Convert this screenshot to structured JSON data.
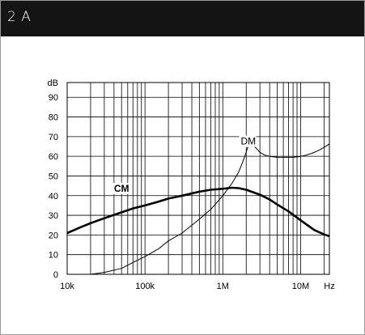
{
  "header": {
    "title": "2 A"
  },
  "chart_data": {
    "type": "line",
    "title": "2 A",
    "x_scale": "log",
    "xlim": [
      10000,
      1000000000
    ],
    "ylim": [
      0,
      100
    ],
    "y_unit_label": "dB",
    "x_unit_label": "Hz",
    "y_ticks": [
      0,
      10,
      20,
      30,
      40,
      50,
      60,
      70,
      80,
      90
    ],
    "x_ticks": [
      {
        "value": 10000,
        "label": "10k"
      },
      {
        "value": 100000,
        "label": "100k"
      },
      {
        "value": 1000000,
        "label": "1M"
      },
      {
        "value": 10000000,
        "label": "10M"
      }
    ],
    "grid": true,
    "series": [
      {
        "name": "DM",
        "stroke": "thin",
        "color": "#000000",
        "x": [
          10000,
          15000,
          20000,
          30000,
          50000,
          70000,
          100000,
          150000,
          200000,
          300000,
          500000,
          700000,
          1000000,
          1300000,
          1600000,
          1800000,
          2000000,
          2100000,
          2200000,
          2400000,
          2700000,
          3000000,
          3500000,
          4000000,
          5000000,
          6000000,
          7000000,
          8000000,
          9000000,
          10000000,
          11000000,
          12000000,
          14000000,
          17000000,
          20000000,
          25000000,
          30000000
        ],
        "values": [
          -2,
          -1,
          0,
          1,
          3,
          6,
          9,
          13,
          17,
          21,
          28,
          33,
          40,
          46,
          52,
          57,
          62,
          65,
          67,
          66,
          64,
          62,
          60.5,
          60,
          59.5,
          59.5,
          59.5,
          59.5,
          59.7,
          60,
          60.3,
          60.7,
          61.5,
          63,
          64.5,
          67,
          69
        ]
      },
      {
        "name": "CM",
        "stroke": "thick",
        "color": "#000000",
        "x": [
          10000,
          15000,
          20000,
          30000,
          50000,
          70000,
          100000,
          150000,
          200000,
          300000,
          500000,
          700000,
          1000000,
          1300000,
          1600000,
          2000000,
          3000000,
          4000000,
          5000000,
          7000000,
          10000000,
          15000000,
          20000000,
          25000000,
          30000000
        ],
        "values": [
          21,
          24,
          26,
          28.5,
          31.5,
          33.5,
          35,
          37,
          38.5,
          40,
          42,
          43,
          43.5,
          44,
          43.8,
          43,
          40.5,
          38,
          35.5,
          32,
          27.5,
          22.5,
          20.3,
          19,
          17.5
        ]
      }
    ],
    "annotations": [
      {
        "text": "DM",
        "x": 1700000,
        "y": 66
      },
      {
        "text": "CM",
        "x": 40000,
        "y": 42
      }
    ]
  }
}
